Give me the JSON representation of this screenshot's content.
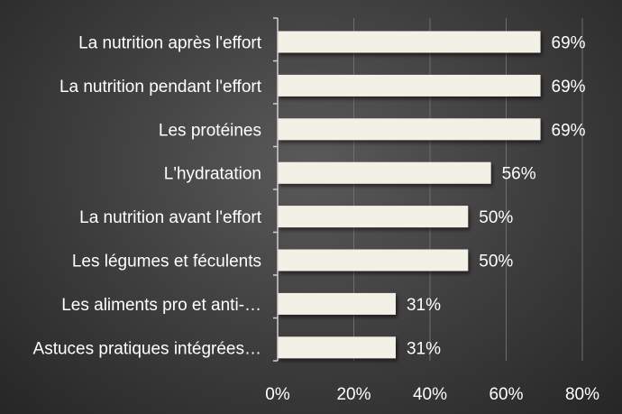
{
  "chart_data": {
    "type": "bar",
    "orientation": "horizontal",
    "categories": [
      "La nutrition après l'effort",
      "La nutrition pendant l'effort",
      "Les protéines",
      "L'hydratation",
      "La nutrition avant l'effort",
      "Les légumes et féculents",
      "Les aliments pro et anti-…",
      "Astuces pratiques intégrées…"
    ],
    "values": [
      69,
      69,
      69,
      56,
      50,
      50,
      31,
      31
    ],
    "value_labels": [
      "69%",
      "69%",
      "69%",
      "56%",
      "50%",
      "50%",
      "31%",
      "31%"
    ],
    "xlim": [
      0,
      80
    ],
    "x_ticks": [
      0,
      20,
      40,
      60,
      80
    ],
    "x_tick_labels": [
      "0%",
      "20%",
      "40%",
      "60%",
      "80%"
    ],
    "title": "",
    "xlabel": "",
    "ylabel": "",
    "grid": true,
    "legend": "none",
    "colors": {
      "bar": "#f3f0e6",
      "text": "#ffffff",
      "grid": "#6e6e6e",
      "axis": "#d0d0d0"
    }
  }
}
